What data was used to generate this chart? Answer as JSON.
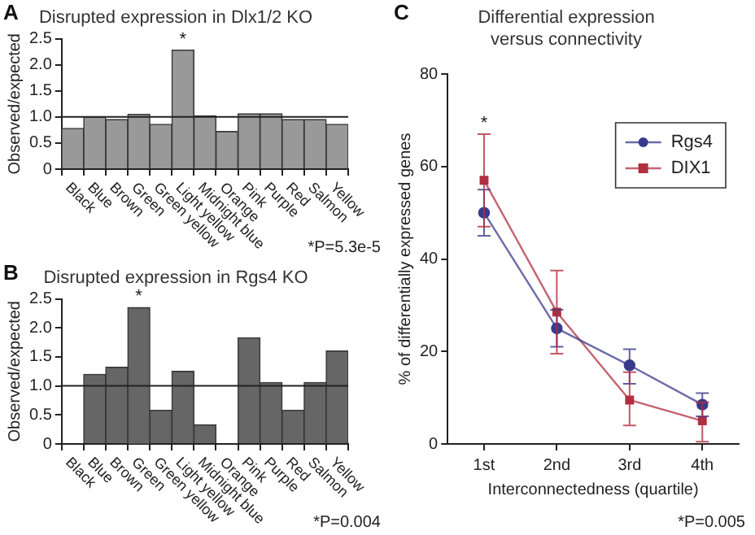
{
  "chart_data": [
    {
      "type": "bar",
      "title": "Disrupted expression in Dlx1/2 KO",
      "ylabel": "Observed/expected",
      "categories": [
        "Black",
        "Blue",
        "Brown",
        "Green",
        "Green yellow",
        "Light yellow",
        "Midnight blue",
        "Orange",
        "Pink",
        "Purple",
        "Red",
        "Salmon",
        "Yellow"
      ],
      "series": [
        {
          "color": "#999999",
          "values": [
            0.78,
            1.0,
            0.95,
            1.05,
            0.86,
            2.28,
            1.02,
            0.72,
            1.06,
            1.06,
            0.95,
            0.95,
            0.86
          ]
        }
      ],
      "ylim": [
        0,
        2.5
      ],
      "yticks": [
        0,
        0.5,
        {
          "value": 1,
          "label": "1.0"
        },
        {
          "value": 1.5,
          "label": "1.5"
        },
        {
          "value": 2,
          "label": "2.0"
        },
        {
          "value": 2.5,
          "label": "2.5"
        }
      ],
      "grid": false,
      "ref_lines": [
        {
          "axis": "y",
          "value": 1,
          "color": "#222222"
        }
      ],
      "annotations": [
        "A",
        "*P=5.3e-5",
        {
          "text": "*",
          "x": "Light yellow",
          "y": 2.28
        }
      ]
    },
    {
      "type": "bar",
      "title": "Disrupted expression in Rgs4 KO",
      "ylabel": "Observed/expected",
      "categories": [
        "Black",
        "Blue",
        "Brown",
        "Green",
        "Green yellow",
        "Light yellow",
        "Midnight blue",
        "Orange",
        "Pink",
        "Purple",
        "Red",
        "Salmon",
        "Yellow"
      ],
      "series": [
        {
          "color": "#666666",
          "values": [
            0,
            1.2,
            1.32,
            2.35,
            0.58,
            1.25,
            0.33,
            0,
            1.83,
            1.06,
            0.58,
            1.06,
            1.6
          ]
        }
      ],
      "ylim": [
        0,
        2.5
      ],
      "yticks": [
        0,
        0.5,
        {
          "value": 1,
          "label": "1.0"
        },
        {
          "value": 1.5,
          "label": "1.5"
        },
        {
          "value": 2,
          "label": "2.0"
        },
        {
          "value": 2.5,
          "label": "2.5"
        }
      ],
      "grid": false,
      "ref_lines": [
        {
          "axis": "y",
          "value": 1,
          "color": "#222222"
        }
      ],
      "annotations": [
        "B",
        "*P=0.004",
        {
          "text": "*",
          "x": "Green",
          "y": 2.35
        }
      ]
    },
    {
      "type": "line",
      "title": "Differential expression\nversus connectivity",
      "xlabel": "Interconnectedness (quartile)",
      "ylabel": "% of differentially expressed genes",
      "categories": [
        "1st",
        "2nd",
        "3rd",
        "4th"
      ],
      "series": [
        {
          "name": "Rgs4",
          "color": "#3a3a8c",
          "marker": "circle",
          "values": [
            50,
            25,
            17,
            8.5
          ],
          "errors": [
            5,
            4,
            [
              13,
              20.5
            ],
            [
              6,
              11
            ]
          ]
        },
        {
          "name": "DIX1",
          "color": "#b03040",
          "marker": "square",
          "values": [
            57,
            28.5,
            9.5,
            5
          ],
          "errors": [
            10,
            9,
            [
              4,
              15.5
            ],
            [
              0.5,
              9
            ]
          ]
        }
      ],
      "ylim": [
        0,
        80
      ],
      "yticks": [
        0,
        20,
        40,
        60,
        80
      ],
      "grid": false,
      "legend": "top right",
      "line_style": "solid",
      "annotations": [
        "C",
        "*P=0.005",
        {
          "text": "*",
          "x": "1st",
          "y": 67
        }
      ]
    }
  ]
}
